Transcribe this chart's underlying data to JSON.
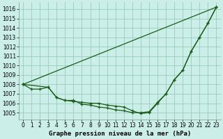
{
  "title": "Graphe pression niveau de la mer (hPa)",
  "bg_color": "#cceee8",
  "grid_color": "#99ccbb",
  "line_color": "#1a5c1a",
  "ylim": [
    1004.3,
    1016.7
  ],
  "yticks": [
    1005,
    1006,
    1007,
    1008,
    1009,
    1010,
    1011,
    1012,
    1013,
    1014,
    1015,
    1016
  ],
  "xlim": [
    -0.5,
    23.5
  ],
  "xticks": [
    0,
    1,
    2,
    3,
    4,
    5,
    6,
    7,
    8,
    9,
    10,
    11,
    12,
    13,
    14,
    15,
    16,
    17,
    18,
    19,
    20,
    21,
    22,
    23
  ],
  "series1_x": [
    0,
    1,
    2,
    3,
    4,
    5,
    6,
    7,
    8,
    9,
    10,
    11,
    12,
    13,
    14,
    15,
    16,
    17,
    18,
    19,
    20,
    21,
    22,
    23
  ],
  "series1_y": [
    1008.0,
    1007.5,
    1007.5,
    1007.7,
    1006.6,
    1006.3,
    1006.3,
    1005.9,
    1005.8,
    1005.6,
    1005.5,
    1005.3,
    1005.2,
    1005.0,
    1005.0,
    1005.1,
    1006.1,
    1007.0,
    1008.5,
    1009.5,
    1011.5,
    1013.0,
    1014.5,
    1016.2
  ],
  "series2_x": [
    0,
    23
  ],
  "series2_y": [
    1008.0,
    1016.2
  ],
  "series3_x": [
    0,
    3,
    4,
    5,
    6,
    7,
    8,
    9,
    10,
    11,
    12,
    13,
    14,
    15,
    16,
    17,
    18,
    19,
    20,
    21,
    22,
    23
  ],
  "series3_y": [
    1008.0,
    1007.7,
    1006.6,
    1006.3,
    1006.2,
    1006.1,
    1006.0,
    1006.0,
    1005.8,
    1005.7,
    1005.6,
    1005.2,
    1004.9,
    1005.0,
    1006.0,
    1007.0,
    1008.5,
    1009.5,
    1011.5,
    1013.0,
    1014.5,
    1016.2
  ],
  "tick_fontsize": 5.5,
  "xlabel_fontsize": 6.5
}
